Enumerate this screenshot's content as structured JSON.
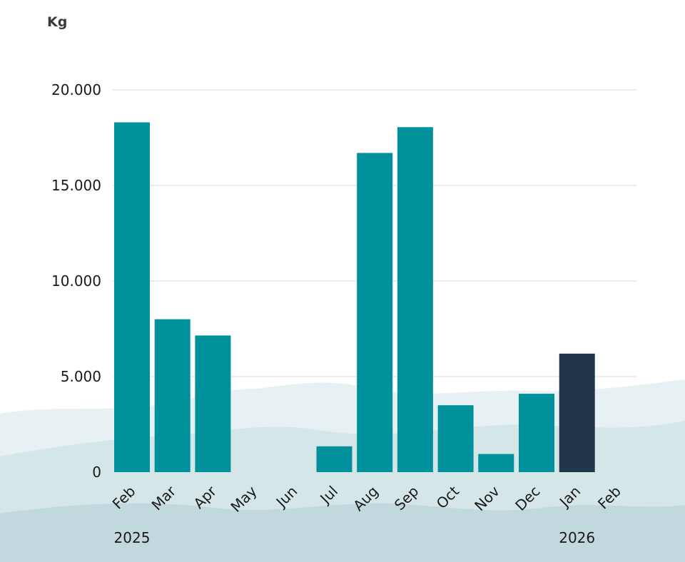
{
  "chart_data": {
    "type": "bar",
    "unit_label": "Kg",
    "categories": [
      "Feb",
      "Mar",
      "Apr",
      "May",
      "Jun",
      "Jul",
      "Aug",
      "Sep",
      "Oct",
      "Nov",
      "Dec",
      "Jan",
      "Feb"
    ],
    "values": [
      18300,
      8000,
      7150,
      0,
      0,
      1350,
      16700,
      18050,
      3500,
      950,
      4100,
      6200,
      0
    ],
    "highlight_index": 11,
    "y_ticks": [
      "0",
      "5.000",
      "10.000",
      "15.000",
      "20.000"
    ],
    "y_tick_values": [
      0,
      5000,
      10000,
      15000,
      20000
    ],
    "ylim": [
      0,
      20000
    ],
    "grid": true,
    "year_labels": [
      {
        "text": "2025",
        "category_index": 0
      },
      {
        "text": "2026",
        "category_index": 11
      }
    ],
    "colors": {
      "bar": "#00919c",
      "highlight": "#21364b",
      "grid": "#d9d9d9",
      "hill_light": "#e3eef1",
      "hill_mid": "#cfe1e6",
      "hill_dark": "#b9d3d8"
    }
  }
}
